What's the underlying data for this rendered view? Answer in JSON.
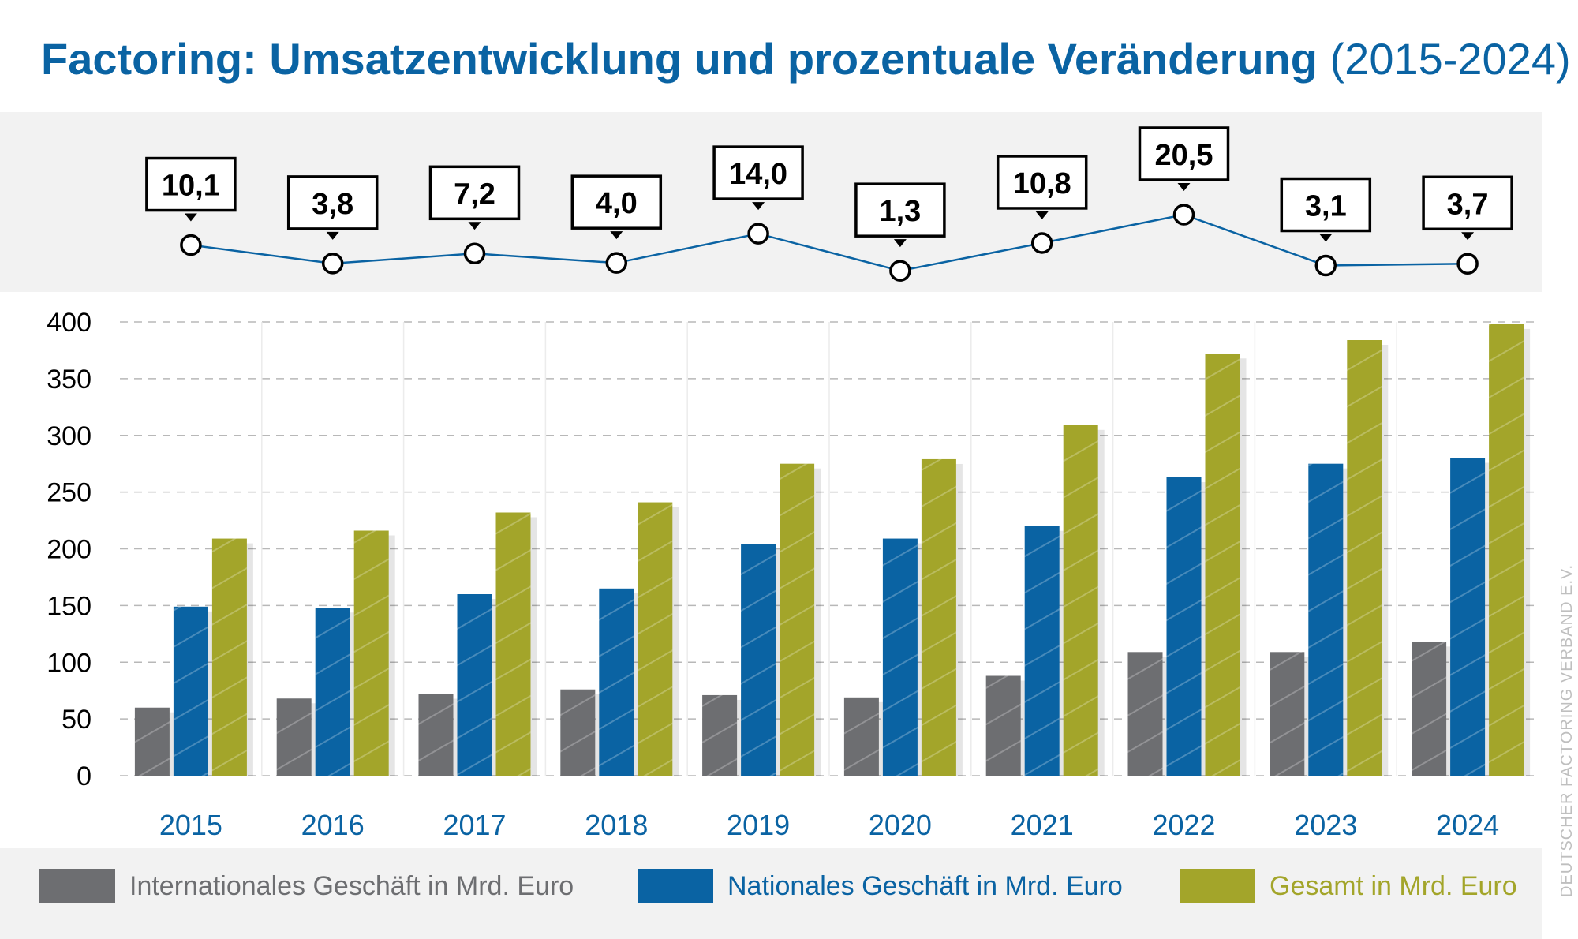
{
  "header": {
    "title_main": "Factoring: Umsatzentwicklung und prozentuale Veränderung",
    "title_sub": "(2015-2024)"
  },
  "credit": "DEUTSCHER FACTORING VERBAND E.V.",
  "colors": {
    "international": "#6d6e71",
    "national": "#0a63a3",
    "gesamt": "#a3a52a",
    "title": "#0a63a3",
    "panel": "#f2f2f2"
  },
  "chart_data": {
    "type": "bar",
    "title": "Factoring: Umsatzentwicklung und prozentuale Veränderung (2015-2024)",
    "categories": [
      "2015",
      "2016",
      "2017",
      "2018",
      "2019",
      "2020",
      "2021",
      "2022",
      "2023",
      "2024"
    ],
    "series": [
      {
        "name": "Internationales Geschäft in Mrd. Euro",
        "values": [
          60,
          68,
          72,
          76,
          71,
          69,
          88,
          109,
          109,
          118
        ]
      },
      {
        "name": "Nationales Geschäft in Mrd. Euro",
        "values": [
          149,
          148,
          160,
          165,
          204,
          209,
          220,
          263,
          275,
          280
        ]
      },
      {
        "name": "Gesamt in Mrd. Euro",
        "values": [
          209,
          216,
          232,
          241,
          275,
          279,
          309,
          372,
          384,
          398
        ]
      }
    ],
    "ylim": [
      0,
      400
    ],
    "yticks": [
      "0",
      "50",
      "100",
      "150",
      "200",
      "250",
      "300",
      "350",
      "400"
    ],
    "grid": true,
    "legend_position": "bottom",
    "change_percent": {
      "type": "line",
      "labels": [
        "10,1",
        "3,8",
        "7,2",
        "4,0",
        "14,0",
        "1,3",
        "10,8",
        "20,5",
        "3,1",
        "3,7"
      ],
      "values": [
        10.1,
        3.8,
        7.2,
        4.0,
        14.0,
        1.3,
        10.8,
        20.5,
        3.1,
        3.7
      ]
    }
  }
}
